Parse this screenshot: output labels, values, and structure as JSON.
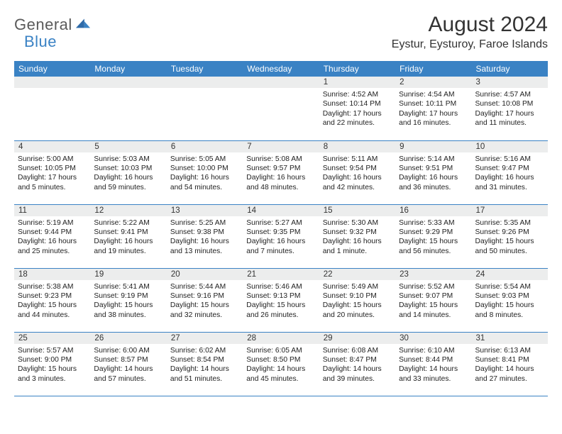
{
  "logo": {
    "text1": "General",
    "text2": "Blue"
  },
  "title": "August 2024",
  "location": "Eystur, Eysturoy, Faroe Islands",
  "colors": {
    "header_bg": "#3a82c4",
    "header_fg": "#ffffff",
    "daynum_bg": "#eceded",
    "rule": "#3a82c4"
  },
  "weekdays": [
    "Sunday",
    "Monday",
    "Tuesday",
    "Wednesday",
    "Thursday",
    "Friday",
    "Saturday"
  ],
  "weeks": [
    [
      {
        "n": "",
        "sunrise": "",
        "sunset": "",
        "daylight": ""
      },
      {
        "n": "",
        "sunrise": "",
        "sunset": "",
        "daylight": ""
      },
      {
        "n": "",
        "sunrise": "",
        "sunset": "",
        "daylight": ""
      },
      {
        "n": "",
        "sunrise": "",
        "sunset": "",
        "daylight": ""
      },
      {
        "n": "1",
        "sunrise": "Sunrise: 4:52 AM",
        "sunset": "Sunset: 10:14 PM",
        "daylight": "Daylight: 17 hours and 22 minutes."
      },
      {
        "n": "2",
        "sunrise": "Sunrise: 4:54 AM",
        "sunset": "Sunset: 10:11 PM",
        "daylight": "Daylight: 17 hours and 16 minutes."
      },
      {
        "n": "3",
        "sunrise": "Sunrise: 4:57 AM",
        "sunset": "Sunset: 10:08 PM",
        "daylight": "Daylight: 17 hours and 11 minutes."
      }
    ],
    [
      {
        "n": "4",
        "sunrise": "Sunrise: 5:00 AM",
        "sunset": "Sunset: 10:05 PM",
        "daylight": "Daylight: 17 hours and 5 minutes."
      },
      {
        "n": "5",
        "sunrise": "Sunrise: 5:03 AM",
        "sunset": "Sunset: 10:03 PM",
        "daylight": "Daylight: 16 hours and 59 minutes."
      },
      {
        "n": "6",
        "sunrise": "Sunrise: 5:05 AM",
        "sunset": "Sunset: 10:00 PM",
        "daylight": "Daylight: 16 hours and 54 minutes."
      },
      {
        "n": "7",
        "sunrise": "Sunrise: 5:08 AM",
        "sunset": "Sunset: 9:57 PM",
        "daylight": "Daylight: 16 hours and 48 minutes."
      },
      {
        "n": "8",
        "sunrise": "Sunrise: 5:11 AM",
        "sunset": "Sunset: 9:54 PM",
        "daylight": "Daylight: 16 hours and 42 minutes."
      },
      {
        "n": "9",
        "sunrise": "Sunrise: 5:14 AM",
        "sunset": "Sunset: 9:51 PM",
        "daylight": "Daylight: 16 hours and 36 minutes."
      },
      {
        "n": "10",
        "sunrise": "Sunrise: 5:16 AM",
        "sunset": "Sunset: 9:47 PM",
        "daylight": "Daylight: 16 hours and 31 minutes."
      }
    ],
    [
      {
        "n": "11",
        "sunrise": "Sunrise: 5:19 AM",
        "sunset": "Sunset: 9:44 PM",
        "daylight": "Daylight: 16 hours and 25 minutes."
      },
      {
        "n": "12",
        "sunrise": "Sunrise: 5:22 AM",
        "sunset": "Sunset: 9:41 PM",
        "daylight": "Daylight: 16 hours and 19 minutes."
      },
      {
        "n": "13",
        "sunrise": "Sunrise: 5:25 AM",
        "sunset": "Sunset: 9:38 PM",
        "daylight": "Daylight: 16 hours and 13 minutes."
      },
      {
        "n": "14",
        "sunrise": "Sunrise: 5:27 AM",
        "sunset": "Sunset: 9:35 PM",
        "daylight": "Daylight: 16 hours and 7 minutes."
      },
      {
        "n": "15",
        "sunrise": "Sunrise: 5:30 AM",
        "sunset": "Sunset: 9:32 PM",
        "daylight": "Daylight: 16 hours and 1 minute."
      },
      {
        "n": "16",
        "sunrise": "Sunrise: 5:33 AM",
        "sunset": "Sunset: 9:29 PM",
        "daylight": "Daylight: 15 hours and 56 minutes."
      },
      {
        "n": "17",
        "sunrise": "Sunrise: 5:35 AM",
        "sunset": "Sunset: 9:26 PM",
        "daylight": "Daylight: 15 hours and 50 minutes."
      }
    ],
    [
      {
        "n": "18",
        "sunrise": "Sunrise: 5:38 AM",
        "sunset": "Sunset: 9:23 PM",
        "daylight": "Daylight: 15 hours and 44 minutes."
      },
      {
        "n": "19",
        "sunrise": "Sunrise: 5:41 AM",
        "sunset": "Sunset: 9:19 PM",
        "daylight": "Daylight: 15 hours and 38 minutes."
      },
      {
        "n": "20",
        "sunrise": "Sunrise: 5:44 AM",
        "sunset": "Sunset: 9:16 PM",
        "daylight": "Daylight: 15 hours and 32 minutes."
      },
      {
        "n": "21",
        "sunrise": "Sunrise: 5:46 AM",
        "sunset": "Sunset: 9:13 PM",
        "daylight": "Daylight: 15 hours and 26 minutes."
      },
      {
        "n": "22",
        "sunrise": "Sunrise: 5:49 AM",
        "sunset": "Sunset: 9:10 PM",
        "daylight": "Daylight: 15 hours and 20 minutes."
      },
      {
        "n": "23",
        "sunrise": "Sunrise: 5:52 AM",
        "sunset": "Sunset: 9:07 PM",
        "daylight": "Daylight: 15 hours and 14 minutes."
      },
      {
        "n": "24",
        "sunrise": "Sunrise: 5:54 AM",
        "sunset": "Sunset: 9:03 PM",
        "daylight": "Daylight: 15 hours and 8 minutes."
      }
    ],
    [
      {
        "n": "25",
        "sunrise": "Sunrise: 5:57 AM",
        "sunset": "Sunset: 9:00 PM",
        "daylight": "Daylight: 15 hours and 3 minutes."
      },
      {
        "n": "26",
        "sunrise": "Sunrise: 6:00 AM",
        "sunset": "Sunset: 8:57 PM",
        "daylight": "Daylight: 14 hours and 57 minutes."
      },
      {
        "n": "27",
        "sunrise": "Sunrise: 6:02 AM",
        "sunset": "Sunset: 8:54 PM",
        "daylight": "Daylight: 14 hours and 51 minutes."
      },
      {
        "n": "28",
        "sunrise": "Sunrise: 6:05 AM",
        "sunset": "Sunset: 8:50 PM",
        "daylight": "Daylight: 14 hours and 45 minutes."
      },
      {
        "n": "29",
        "sunrise": "Sunrise: 6:08 AM",
        "sunset": "Sunset: 8:47 PM",
        "daylight": "Daylight: 14 hours and 39 minutes."
      },
      {
        "n": "30",
        "sunrise": "Sunrise: 6:10 AM",
        "sunset": "Sunset: 8:44 PM",
        "daylight": "Daylight: 14 hours and 33 minutes."
      },
      {
        "n": "31",
        "sunrise": "Sunrise: 6:13 AM",
        "sunset": "Sunset: 8:41 PM",
        "daylight": "Daylight: 14 hours and 27 minutes."
      }
    ]
  ]
}
